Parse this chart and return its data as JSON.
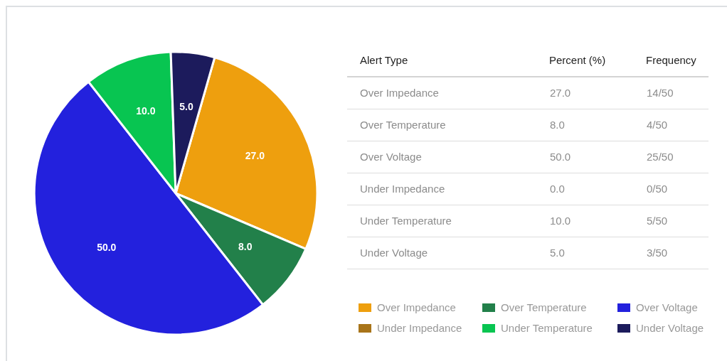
{
  "chart_data": {
    "type": "pie",
    "categories": [
      "Over Impedance",
      "Over Temperature",
      "Over Voltage",
      "Under Impedance",
      "Under Temperature",
      "Under Voltage"
    ],
    "values": [
      27,
      8,
      50,
      0,
      10,
      5
    ],
    "colors": [
      "#ee9f0e",
      "#22804a",
      "#2321dd",
      "#a87419",
      "#08c551",
      "#1c1b5c"
    ],
    "value_labels": [
      "27.0",
      "8.0",
      "50.0",
      "0.0",
      "10.0",
      "5.0"
    ],
    "annotations": [
      "Alert Type",
      "Percent (%)",
      "Frequency",
      "14/50",
      "4/50",
      "25/50",
      "0/50",
      "5/50",
      "3/50"
    ],
    "legend": "right"
  }
}
